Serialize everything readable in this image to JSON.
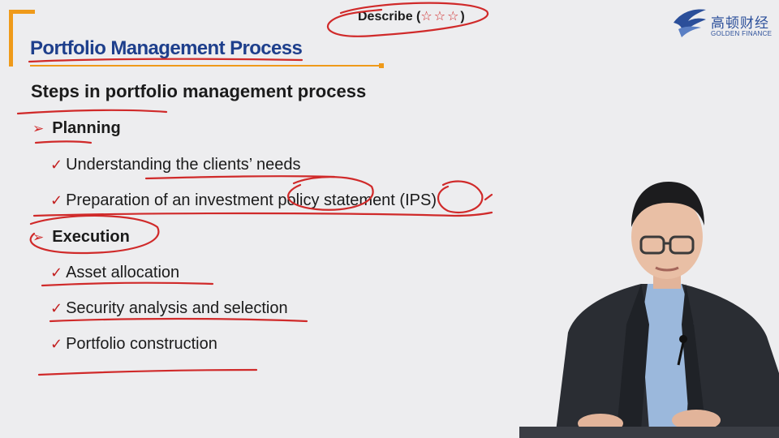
{
  "slide": {
    "title": "Portfolio Management Process",
    "describe_label": "Describe (",
    "describe_stars": "☆☆☆",
    "describe_close": ")",
    "heading": "Steps in portfolio management process",
    "sections": [
      {
        "label": "Planning",
        "items": [
          "Understanding the clients’ needs",
          "Preparation of an investment policy statement (IPS)"
        ]
      },
      {
        "label": "Execution",
        "items": [
          "Asset allocation",
          "Security analysis and selection",
          "Portfolio construction"
        ]
      }
    ]
  },
  "logo": {
    "cn": "高顿财经",
    "en": "GOLDEN FINANCE"
  },
  "icons": {
    "bullet": "arrow-bullet-icon",
    "check": "check-icon",
    "logo": "eagle-logo-icon"
  },
  "colors": {
    "accent_orange": "#ef9a1a",
    "title_blue": "#1e3f8c",
    "ink_red": "#d02a2a"
  }
}
